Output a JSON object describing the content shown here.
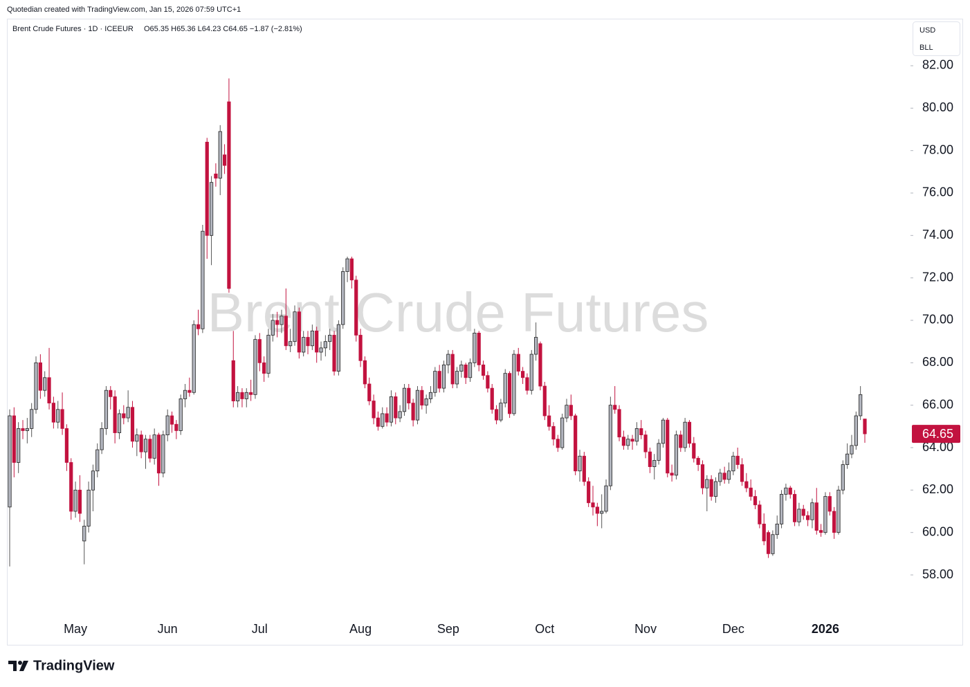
{
  "chart_data": {
    "type": "candlestick",
    "credit": "Quotedian created with TradingView.com, Jan 15, 2026 07:59 UTC+1",
    "title": "Brent Crude Futures · 1D · ICEEUR",
    "ohlc_summary": "O65.35  H65.36  L64.23  C64.65  −1.87 (−2.81%)",
    "watermark": "Brent Crude Futures",
    "currency": "USD",
    "unit": "BLL",
    "brand": "TradingView",
    "up_color": "#b2b5be",
    "down_color": "#c2123f",
    "categories": [
      null,
      null,
      null,
      null,
      null,
      null,
      null,
      null,
      null,
      null,
      null,
      null,
      null,
      null,
      null,
      "May",
      null,
      null,
      null,
      null,
      null,
      null,
      null,
      null,
      null,
      null,
      null,
      null,
      null,
      null,
      null,
      null,
      null,
      null,
      null,
      null,
      "Jun",
      null,
      null,
      null,
      null,
      null,
      null,
      null,
      null,
      null,
      null,
      null,
      null,
      null,
      null,
      null,
      null,
      null,
      null,
      null,
      null,
      "Jul",
      null,
      null,
      null,
      null,
      null,
      null,
      null,
      null,
      null,
      null,
      null,
      null,
      null,
      null,
      null,
      null,
      null,
      null,
      null,
      null,
      null,
      null,
      "Aug",
      null,
      null,
      null,
      null,
      null,
      null,
      null,
      null,
      null,
      null,
      null,
      null,
      null,
      null,
      null,
      null,
      null,
      null,
      null,
      "Sep",
      null,
      null,
      null,
      null,
      null,
      null,
      null,
      null,
      null,
      null,
      null,
      null,
      null,
      null,
      null,
      null,
      null,
      null,
      null,
      null,
      null,
      "Oct",
      null,
      null,
      null,
      null,
      null,
      null,
      null,
      null,
      null,
      null,
      null,
      null,
      null,
      null,
      null,
      null,
      null,
      null,
      null,
      null,
      null,
      null,
      "Nov",
      null,
      null,
      null,
      null,
      null,
      null,
      null,
      null,
      null,
      null,
      null,
      null,
      null,
      null,
      null,
      null,
      null,
      null,
      null,
      "Dec",
      null,
      null,
      null,
      null,
      null,
      null,
      null,
      null,
      null,
      null,
      null,
      null,
      null,
      null,
      null,
      null,
      null,
      null,
      null,
      null,
      "2026",
      null,
      null,
      null,
      null,
      null,
      null,
      null,
      null,
      null
    ],
    "open": [
      61.2,
      65.5,
      63.3,
      64.9,
      64.8,
      64.9,
      65.8,
      68.0,
      66.7,
      67.3,
      66.1,
      65.2,
      65.8,
      64.9,
      63.3,
      61.0,
      62.0,
      59.6,
      60.3,
      62.0,
      62.9,
      63.9,
      64.9,
      66.7,
      66.4,
      64.7,
      65.6,
      65.4,
      65.9,
      64.3,
      64.6,
      63.8,
      64.4,
      63.5,
      64.6,
      62.8,
      64.6,
      65.5,
      65.1,
      64.8,
      66.3,
      66.7,
      66.6,
      69.8,
      69.6,
      78.4,
      74.0,
      76.9,
      76.7,
      77.8,
      80.3,
      68.1,
      66.2,
      66.6,
      66.3,
      66.6,
      66.5,
      69.1,
      68.0,
      67.5,
      69.3,
      70.0,
      69.8,
      70.2,
      68.8,
      69.0,
      70.4,
      68.5,
      69.2,
      68.8,
      69.5,
      68.5,
      68.7,
      69.0,
      69.3,
      67.6,
      69.8,
      72.3,
      72.9,
      71.9,
      69.3,
      68.1,
      67.0,
      66.2,
      65.4,
      65.0,
      65.6,
      65.2,
      66.4,
      65.4,
      65.7,
      66.8,
      66.1,
      65.3,
      66.7,
      66.0,
      66.3,
      66.6,
      67.6,
      66.8,
      67.9,
      68.4,
      67.0,
      67.6,
      67.9,
      67.3,
      68.0,
      69.4,
      67.9,
      67.4,
      66.8,
      65.8,
      65.3,
      66.1,
      67.5,
      65.6,
      68.4,
      67.6,
      67.3,
      66.7,
      68.4,
      68.9,
      66.9,
      65.5,
      65.0,
      64.4,
      64.0,
      65.4,
      66.0,
      65.5,
      62.9,
      63.6,
      62.4,
      61.4,
      61.2,
      60.9,
      61.0,
      62.2,
      66.0,
      65.8,
      64.5,
      64.1,
      64.4,
      64.3,
      64.9,
      64.6,
      63.8,
      63.1,
      63.4,
      64.2,
      65.3,
      62.8,
      62.7,
      64.6,
      64.0,
      65.2,
      64.2,
      63.5,
      63.2,
      62.1,
      62.5,
      61.7,
      62.4,
      62.8,
      62.5,
      62.9,
      63.6,
      63.2,
      62.4,
      62.1,
      61.7,
      61.3,
      60.4,
      60.0,
      59.0,
      59.9,
      60.4,
      61.8,
      62.1,
      61.8,
      60.5,
      61.1,
      60.8,
      60.6,
      61.4,
      60.1,
      60.0,
      61.7,
      61.0,
      60.0,
      62.0,
      63.2,
      63.7,
      64.1,
      65.5,
      65.35
    ],
    "high": [
      65.8,
      65.9,
      65.2,
      65.3,
      65.4,
      66.1,
      68.3,
      68.4,
      67.6,
      68.7,
      66.4,
      66.2,
      66.6,
      65.1,
      63.5,
      62.4,
      62.7,
      60.6,
      62.4,
      63.2,
      64.2,
      65.2,
      66.9,
      66.9,
      66.7,
      65.8,
      66.0,
      66.7,
      66.2,
      64.9,
      64.8,
      64.6,
      64.6,
      64.9,
      64.7,
      64.8,
      65.8,
      65.7,
      65.3,
      66.5,
      67.0,
      67.3,
      70.0,
      70.5,
      74.5,
      78.6,
      76.8,
      77.4,
      79.2,
      78.3,
      81.4,
      69.5,
      66.9,
      66.8,
      66.8,
      67.2,
      69.3,
      69.4,
      68.3,
      69.6,
      70.3,
      70.4,
      70.5,
      71.5,
      69.6,
      70.7,
      70.6,
      69.5,
      69.5,
      69.8,
      69.7,
      69.0,
      69.3,
      69.6,
      69.5,
      70.0,
      72.5,
      73.0,
      73.0,
      72.1,
      69.6,
      68.3,
      67.3,
      66.5,
      65.7,
      65.9,
      65.9,
      66.7,
      66.6,
      66.0,
      67.0,
      67.0,
      66.3,
      66.9,
      66.9,
      66.5,
      66.9,
      67.8,
      67.9,
      68.1,
      68.6,
      68.6,
      67.8,
      68.1,
      68.0,
      68.2,
      69.6,
      69.5,
      68.1,
      67.6,
      67.0,
      66.0,
      66.3,
      67.7,
      67.6,
      68.6,
      68.7,
      67.8,
      67.5,
      68.6,
      69.9,
      69.0,
      67.1,
      66.0,
      65.2,
      64.6,
      65.6,
      66.3,
      66.5,
      65.6,
      63.9,
      63.8,
      62.6,
      62.2,
      61.4,
      61.8,
      62.5,
      66.4,
      66.9,
      66.0,
      64.8,
      64.6,
      64.6,
      65.2,
      65.3,
      64.8,
      64.0,
      63.7,
      64.4,
      65.4,
      65.4,
      63.2,
      64.8,
      64.8,
      65.4,
      65.3,
      64.5,
      63.6,
      63.4,
      62.7,
      62.7,
      62.6,
      63.0,
      63.1,
      63.3,
      63.8,
      64.0,
      63.5,
      62.8,
      62.5,
      62.0,
      61.5,
      60.9,
      60.1,
      60.1,
      60.8,
      62.0,
      62.3,
      62.2,
      62.0,
      61.4,
      61.3,
      61.0,
      61.6,
      62.1,
      60.4,
      61.9,
      61.9,
      61.2,
      62.2,
      63.4,
      64.2,
      64.6,
      65.7,
      66.9,
      65.36
    ],
    "low": [
      58.4,
      62.6,
      62.8,
      64.4,
      64.2,
      64.5,
      65.6,
      66.3,
      66.4,
      65.8,
      64.9,
      64.9,
      64.6,
      62.9,
      60.6,
      60.7,
      60.5,
      58.5,
      60.0,
      61.0,
      62.6,
      63.7,
      64.6,
      65.8,
      64.2,
      64.4,
      65.1,
      65.2,
      64.0,
      63.6,
      63.5,
      63.0,
      63.3,
      63.2,
      62.2,
      62.6,
      64.3,
      64.7,
      64.4,
      64.6,
      65.9,
      66.4,
      66.5,
      69.3,
      69.4,
      72.9,
      72.6,
      76.3,
      75.9,
      76.9,
      71.3,
      65.9,
      65.9,
      65.9,
      65.9,
      66.2,
      66.3,
      67.6,
      67.1,
      67.3,
      69.0,
      69.2,
      69.4,
      68.6,
      68.5,
      68.8,
      68.2,
      68.3,
      68.4,
      68.6,
      68.0,
      68.1,
      68.3,
      68.6,
      67.4,
      67.4,
      69.6,
      71.8,
      71.5,
      69.0,
      67.8,
      66.8,
      66.0,
      65.1,
      64.8,
      64.9,
      65.0,
      65.0,
      65.1,
      65.2,
      65.5,
      65.8,
      65.0,
      65.1,
      65.8,
      65.6,
      66.1,
      66.4,
      66.6,
      66.6,
      67.5,
      66.8,
      66.8,
      67.3,
      67.0,
      67.1,
      67.8,
      67.6,
      67.2,
      66.6,
      65.6,
      65.1,
      65.2,
      65.9,
      65.4,
      65.5,
      67.4,
      67.0,
      66.5,
      66.5,
      68.1,
      66.7,
      65.3,
      64.8,
      64.1,
      63.8,
      63.9,
      65.2,
      65.3,
      62.7,
      62.4,
      62.2,
      61.2,
      60.8,
      60.3,
      60.2,
      60.9,
      62.0,
      65.6,
      64.3,
      63.9,
      63.9,
      63.9,
      64.1,
      64.4,
      63.5,
      62.8,
      62.5,
      63.2,
      64.0,
      62.6,
      62.4,
      62.5,
      63.8,
      63.8,
      64.0,
      63.3,
      62.9,
      61.8,
      61.0,
      61.5,
      61.4,
      62.2,
      62.3,
      62.3,
      62.7,
      63.0,
      62.2,
      61.9,
      61.5,
      61.1,
      60.2,
      59.4,
      58.8,
      58.9,
      59.7,
      60.2,
      61.5,
      61.6,
      60.3,
      60.3,
      60.6,
      60.3,
      60.2,
      59.9,
      59.8,
      59.9,
      60.8,
      59.7,
      59.9,
      61.8,
      63.0,
      63.5,
      63.9,
      65.3,
      64.23
    ],
    "close": [
      65.5,
      63.3,
      64.9,
      64.8,
      64.9,
      65.8,
      68.0,
      66.7,
      67.3,
      66.1,
      65.2,
      65.8,
      64.9,
      63.3,
      61.0,
      62.0,
      60.9,
      60.3,
      62.0,
      62.9,
      63.9,
      64.9,
      66.7,
      66.4,
      64.7,
      65.6,
      65.4,
      65.9,
      64.3,
      64.6,
      63.8,
      64.4,
      63.5,
      64.6,
      62.8,
      64.6,
      65.5,
      65.1,
      64.8,
      66.3,
      66.7,
      66.6,
      69.8,
      69.6,
      74.2,
      74.0,
      76.5,
      76.7,
      78.9,
      77.3,
      71.5,
      66.2,
      66.6,
      66.3,
      66.6,
      66.5,
      69.1,
      68.0,
      67.5,
      69.3,
      70.0,
      69.8,
      70.2,
      68.8,
      69.0,
      70.4,
      68.5,
      69.2,
      68.8,
      69.5,
      68.5,
      68.7,
      69.0,
      69.3,
      67.6,
      69.8,
      72.3,
      72.9,
      71.9,
      69.3,
      68.1,
      67.0,
      66.2,
      65.4,
      65.0,
      65.6,
      65.2,
      66.4,
      65.4,
      65.7,
      66.8,
      66.1,
      65.3,
      66.7,
      66.0,
      66.3,
      66.6,
      67.6,
      66.8,
      67.9,
      68.4,
      67.0,
      67.6,
      67.9,
      67.3,
      68.0,
      69.4,
      67.9,
      67.4,
      66.8,
      65.8,
      65.3,
      66.1,
      67.5,
      65.6,
      68.4,
      67.6,
      67.3,
      66.7,
      68.4,
      69.2,
      66.9,
      65.5,
      65.0,
      64.4,
      64.0,
      65.4,
      66.0,
      65.5,
      62.9,
      63.6,
      62.4,
      61.4,
      61.2,
      60.9,
      61.0,
      62.2,
      66.0,
      65.8,
      64.5,
      64.1,
      64.4,
      64.3,
      64.9,
      64.6,
      63.8,
      63.1,
      63.4,
      64.2,
      65.3,
      62.8,
      62.7,
      64.6,
      64.0,
      65.2,
      64.2,
      63.5,
      63.2,
      62.1,
      62.5,
      61.7,
      62.4,
      62.8,
      62.5,
      62.9,
      63.6,
      63.2,
      62.4,
      62.1,
      61.7,
      61.3,
      60.4,
      59.6,
      59.0,
      59.9,
      60.4,
      61.8,
      62.1,
      61.8,
      60.5,
      61.1,
      60.8,
      60.6,
      61.4,
      60.1,
      60.0,
      61.7,
      61.0,
      60.0,
      62.0,
      63.2,
      63.7,
      64.1,
      65.5,
      66.5,
      64.65
    ],
    "ylim": [
      57.5,
      83.0
    ],
    "yticks": [
      {
        "value": 58,
        "label": "58.00"
      },
      {
        "value": 60,
        "label": "60.00"
      },
      {
        "value": 62,
        "label": "62.00"
      },
      {
        "value": 64,
        "label": "64.00"
      },
      {
        "value": 66,
        "label": "66.00"
      },
      {
        "value": 68,
        "label": "68.00"
      },
      {
        "value": 70,
        "label": "70.00"
      },
      {
        "value": 72,
        "label": "72.00"
      },
      {
        "value": 74,
        "label": "74.00"
      },
      {
        "value": 76,
        "label": "76.00"
      },
      {
        "value": 78,
        "label": "78.00"
      },
      {
        "value": 80,
        "label": "80.00"
      },
      {
        "value": 82,
        "label": "82.00"
      }
    ],
    "grid": false
  }
}
